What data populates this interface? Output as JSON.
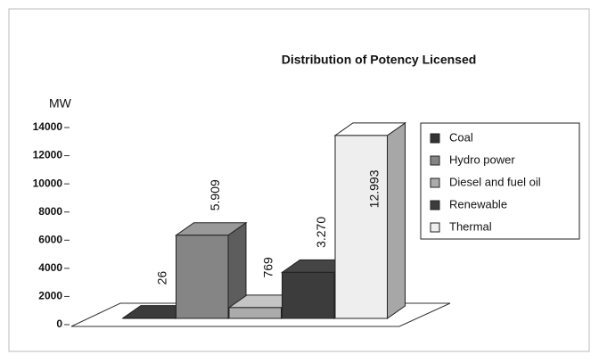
{
  "chart_data": {
    "type": "bar3d",
    "title": "Distribution of Potency Licensed",
    "ylabel": "MW",
    "categories": [
      "Coal",
      "Hydro power",
      "Diesel and fuel oil",
      "Renewable",
      "Thermal"
    ],
    "values": [
      26,
      5909,
      769,
      3270,
      12993
    ],
    "value_labels": [
      "26",
      "5.909",
      "769",
      "3.270",
      "12.993"
    ],
    "colors": [
      "#333333",
      "#858585",
      "#ababab",
      "#3c3c3c",
      "#eeeeee"
    ],
    "ylim": [
      0,
      14000
    ],
    "yticks": [
      0,
      2000,
      4000,
      6000,
      8000,
      10000,
      12000,
      14000
    ],
    "legend": "right"
  }
}
